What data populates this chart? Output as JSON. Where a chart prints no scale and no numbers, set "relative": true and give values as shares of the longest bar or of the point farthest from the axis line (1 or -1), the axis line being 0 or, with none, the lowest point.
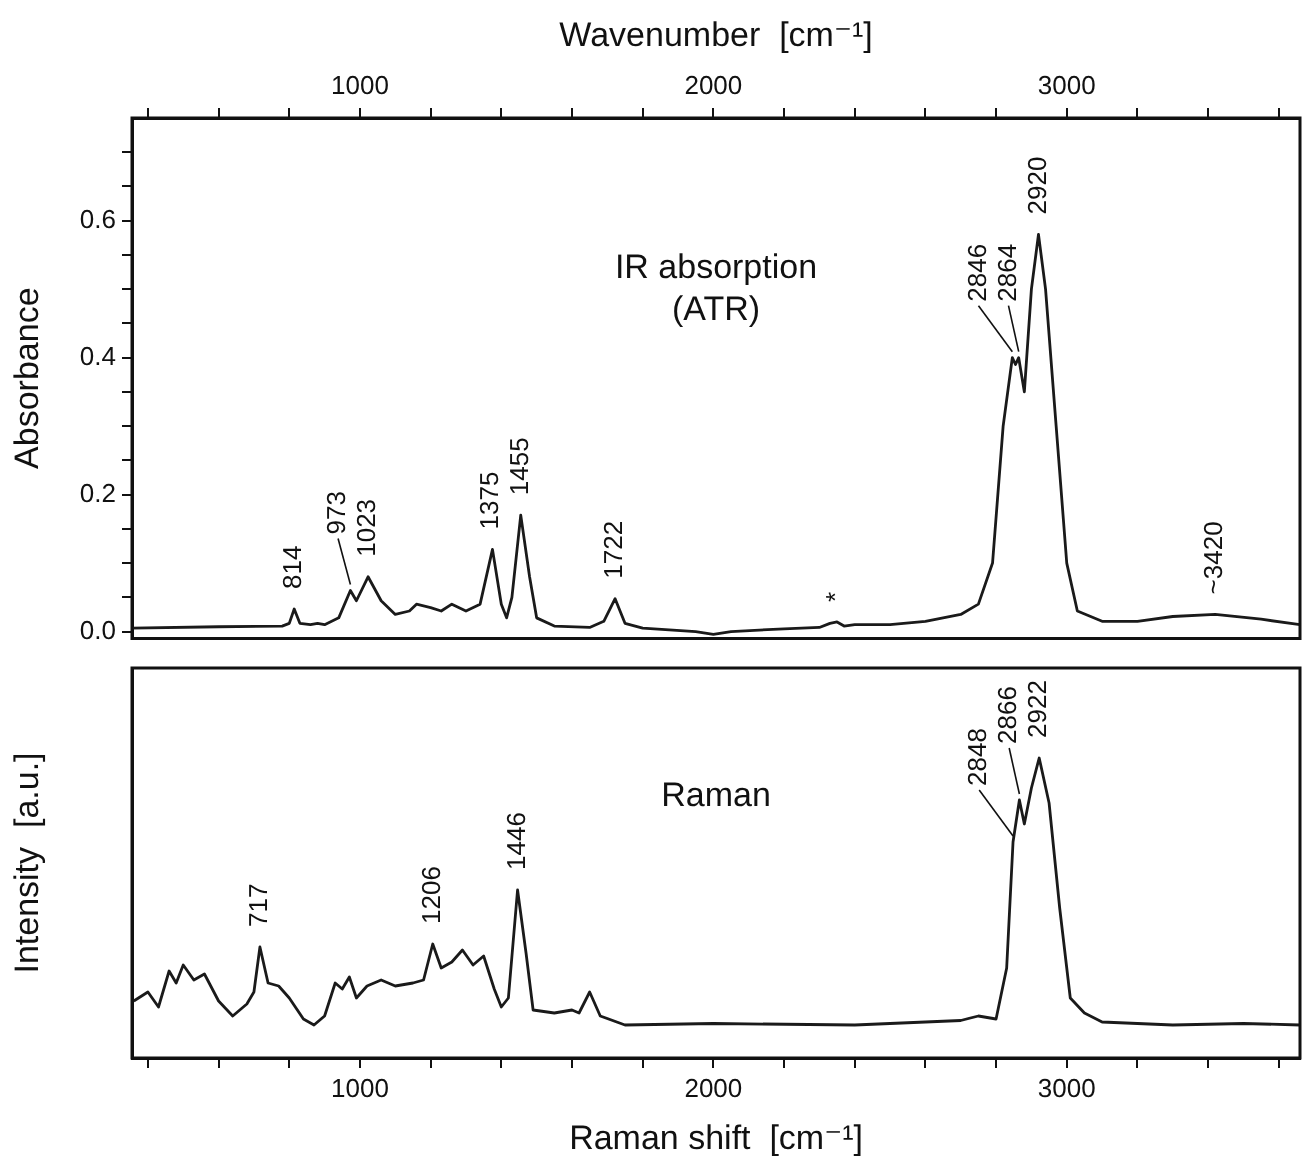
{
  "chart_data": [
    {
      "type": "line",
      "xlabel": "Wavenumber  [cm⁻¹]",
      "ylabel": "Absorbance",
      "xlim": [
        355,
        3660
      ],
      "ylim": [
        -0.01,
        0.75
      ],
      "xticks": [
        {
          "value": 400,
          "label": null
        },
        {
          "value": 600,
          "label": null
        },
        {
          "value": 800,
          "label": null
        },
        1000,
        {
          "value": 1200,
          "label": null
        },
        {
          "value": 1400,
          "label": null
        },
        {
          "value": 1600,
          "label": null
        },
        {
          "value": 1800,
          "label": null
        },
        2000,
        {
          "value": 2200,
          "label": null
        },
        {
          "value": 2400,
          "label": null
        },
        {
          "value": 2600,
          "label": null
        },
        {
          "value": 2800,
          "label": null
        },
        3000,
        {
          "value": 3200,
          "label": null
        },
        {
          "value": 3400,
          "label": null
        },
        {
          "value": 3600,
          "label": null
        }
      ],
      "yticks": [
        {
          "value": 0,
          "label": "0.0"
        },
        {
          "value": 0.05,
          "label": null
        },
        {
          "value": 0.1,
          "label": null
        },
        {
          "value": 0.15,
          "label": null
        },
        0.2,
        {
          "value": 0.25,
          "label": null
        },
        {
          "value": 0.3,
          "label": null
        },
        {
          "value": 0.35,
          "label": null
        },
        0.4,
        {
          "value": 0.45,
          "label": null
        },
        {
          "value": 0.5,
          "label": null
        },
        {
          "value": 0.55,
          "label": null
        },
        0.6,
        {
          "value": 0.65,
          "label": null
        },
        {
          "value": 0.7,
          "label": null
        }
      ],
      "x": [
        355,
        600,
        780,
        800,
        814,
        830,
        860,
        880,
        900,
        940,
        973,
        990,
        1023,
        1060,
        1100,
        1140,
        1160,
        1200,
        1230,
        1260,
        1300,
        1340,
        1375,
        1400,
        1415,
        1430,
        1455,
        1480,
        1500,
        1550,
        1650,
        1690,
        1722,
        1750,
        1800,
        1950,
        2000,
        2050,
        2200,
        2300,
        2330,
        2350,
        2370,
        2400,
        2500,
        2600,
        2700,
        2750,
        2790,
        2820,
        2846,
        2855,
        2864,
        2880,
        2900,
        2920,
        2940,
        2970,
        3000,
        3030,
        3100,
        3200,
        3300,
        3420,
        3550,
        3660
      ],
      "series": [
        {
          "color": "#1a1a1a",
          "values": [
            0.005,
            0.007,
            0.008,
            0.012,
            0.033,
            0.012,
            0.01,
            0.012,
            0.01,
            0.02,
            0.06,
            0.045,
            0.08,
            0.045,
            0.025,
            0.03,
            0.04,
            0.035,
            0.03,
            0.04,
            0.03,
            0.04,
            0.12,
            0.04,
            0.02,
            0.05,
            0.17,
            0.08,
            0.02,
            0.008,
            0.006,
            0.015,
            0.048,
            0.012,
            0.005,
            0.0,
            -0.004,
            0.0,
            0.004,
            0.006,
            0.012,
            0.014,
            0.008,
            0.01,
            0.01,
            0.015,
            0.025,
            0.04,
            0.1,
            0.3,
            0.4,
            0.39,
            0.4,
            0.35,
            0.5,
            0.58,
            0.5,
            0.3,
            0.1,
            0.03,
            0.015,
            0.015,
            0.022,
            0.025,
            0.018,
            0.01
          ]
        }
      ],
      "annotations": [
        "IR absorption\n(ATR)",
        {
          "text": "814",
          "x": 814,
          "y": 0.033
        },
        {
          "text": "973",
          "x": 973,
          "y": 0.06
        },
        {
          "text": "1023",
          "x": 1023,
          "y": 0.08
        },
        {
          "text": "1375",
          "x": 1375,
          "y": 0.12
        },
        {
          "text": "1455",
          "x": 1455,
          "y": 0.17
        },
        {
          "text": "1722",
          "x": 1722,
          "y": 0.048
        },
        {
          "text": "*",
          "x": 2350,
          "y": 0.014
        },
        {
          "text": "2846",
          "x": 2846,
          "y": 0.4
        },
        {
          "text": "2864",
          "x": 2864,
          "y": 0.4
        },
        {
          "text": "2920",
          "x": 2920,
          "y": 0.58
        },
        {
          "text": "~3420",
          "x": 3420,
          "y": 0.025
        }
      ],
      "grid": false,
      "legend": false
    },
    {
      "type": "line",
      "xlabel": "Raman shift  [cm⁻¹]",
      "ylabel": "Intensity  [a.u.]",
      "xlim": [
        355,
        3660
      ],
      "relative": true,
      "tick_labels": "x",
      "xticks": [
        {
          "value": 400,
          "label": null
        },
        {
          "value": 600,
          "label": null
        },
        {
          "value": 800,
          "label": null
        },
        1000,
        {
          "value": 1200,
          "label": null
        },
        {
          "value": 1400,
          "label": null
        },
        {
          "value": 1600,
          "label": null
        },
        {
          "value": 1800,
          "label": null
        },
        2000,
        {
          "value": 2200,
          "label": null
        },
        {
          "value": 2400,
          "label": null
        },
        {
          "value": 2600,
          "label": null
        },
        {
          "value": 2800,
          "label": null
        },
        3000,
        {
          "value": 3200,
          "label": null
        },
        {
          "value": 3400,
          "label": null
        },
        {
          "value": 3600,
          "label": null
        }
      ],
      "x": [
        360,
        400,
        430,
        460,
        480,
        500,
        530,
        560,
        600,
        640,
        680,
        700,
        717,
        740,
        770,
        800,
        840,
        870,
        900,
        930,
        950,
        970,
        990,
        1020,
        1060,
        1100,
        1150,
        1180,
        1206,
        1230,
        1260,
        1290,
        1320,
        1350,
        1380,
        1400,
        1420,
        1446,
        1470,
        1490,
        1550,
        1600,
        1620,
        1650,
        1680,
        1750,
        2000,
        2400,
        2700,
        2750,
        2800,
        2830,
        2848,
        2866,
        2880,
        2900,
        2922,
        2950,
        2980,
        3010,
        3050,
        3100,
        3300,
        3500,
        3660
      ],
      "series": [
        {
          "color": "#1a1a1a",
          "values": [
            0.19,
            0.22,
            0.17,
            0.29,
            0.25,
            0.31,
            0.26,
            0.28,
            0.19,
            0.14,
            0.18,
            0.22,
            0.37,
            0.25,
            0.24,
            0.2,
            0.13,
            0.11,
            0.14,
            0.25,
            0.23,
            0.27,
            0.2,
            0.24,
            0.26,
            0.24,
            0.25,
            0.26,
            0.38,
            0.3,
            0.32,
            0.36,
            0.31,
            0.34,
            0.23,
            0.17,
            0.2,
            0.56,
            0.35,
            0.16,
            0.15,
            0.16,
            0.15,
            0.22,
            0.14,
            0.11,
            0.115,
            0.11,
            0.125,
            0.14,
            0.13,
            0.3,
            0.72,
            0.86,
            0.78,
            0.9,
            1,
            0.85,
            0.5,
            0.2,
            0.15,
            0.12,
            0.11,
            0.115,
            0.11
          ]
        }
      ],
      "annotations": [
        "Raman",
        {
          "text": "717",
          "x": 717,
          "y": 0.37
        },
        {
          "text": "1206",
          "x": 1206,
          "y": 0.38
        },
        {
          "text": "1446",
          "x": 1446,
          "y": 0.56
        },
        {
          "text": "2848",
          "x": 2848,
          "y": 0.72
        },
        {
          "text": "2866",
          "x": 2866,
          "y": 0.86
        },
        {
          "text": "2922",
          "x": 2922,
          "y": 1
        }
      ],
      "grid": false,
      "legend": false
    }
  ]
}
